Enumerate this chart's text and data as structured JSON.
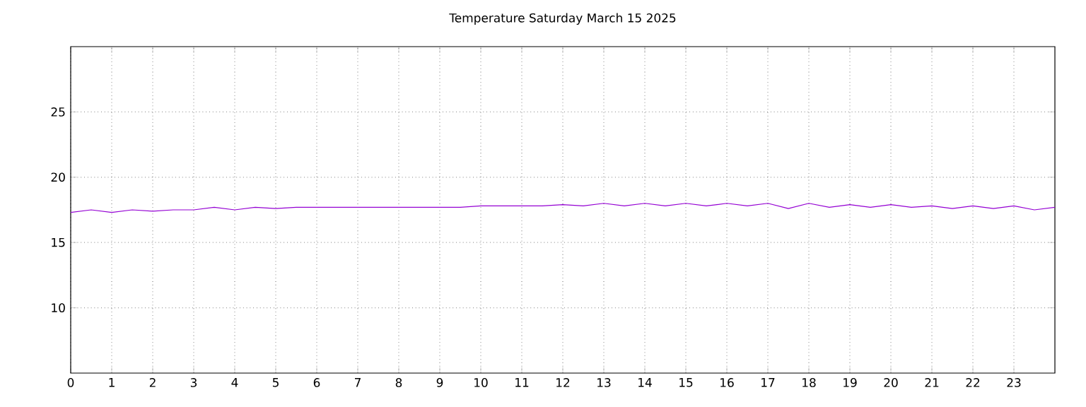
{
  "chart_data": {
    "type": "line",
    "title": "Temperature Saturday March 15 2025",
    "x": [
      0,
      0.5,
      1,
      1.5,
      2,
      2.5,
      3,
      3.5,
      4,
      4.5,
      5,
      5.5,
      6,
      7,
      8,
      9,
      9.5,
      10,
      11,
      11.5,
      12,
      12.5,
      13,
      13.5,
      14,
      14.5,
      15,
      15.5,
      16,
      16.5,
      17,
      17.5,
      18,
      18.5,
      19,
      19.5,
      20,
      20.5,
      21,
      21.5,
      22,
      22.5,
      23,
      23.5,
      24
    ],
    "series": [
      {
        "color": "#9400d3",
        "values": [
          17.3,
          17.5,
          17.3,
          17.5,
          17.4,
          17.5,
          17.5,
          17.7,
          17.5,
          17.7,
          17.6,
          17.7,
          17.7,
          17.7,
          17.7,
          17.7,
          17.7,
          17.8,
          17.8,
          17.8,
          17.9,
          17.8,
          18.0,
          17.8,
          18.0,
          17.8,
          18.0,
          17.8,
          18.0,
          17.8,
          18.0,
          17.6,
          18.0,
          17.7,
          17.9,
          17.7,
          17.9,
          17.7,
          17.8,
          17.6,
          17.8,
          17.6,
          17.8,
          17.5,
          17.7
        ]
      }
    ],
    "xlim": [
      0,
      24
    ],
    "ylim": [
      5,
      30
    ],
    "xticks": [
      0,
      1,
      2,
      3,
      4,
      5,
      6,
      7,
      8,
      9,
      10,
      11,
      12,
      13,
      14,
      15,
      16,
      17,
      18,
      19,
      20,
      21,
      22,
      23
    ],
    "yticks": [
      10,
      15,
      20,
      25
    ],
    "grid": true,
    "marker": "none",
    "line_style": "solid"
  }
}
